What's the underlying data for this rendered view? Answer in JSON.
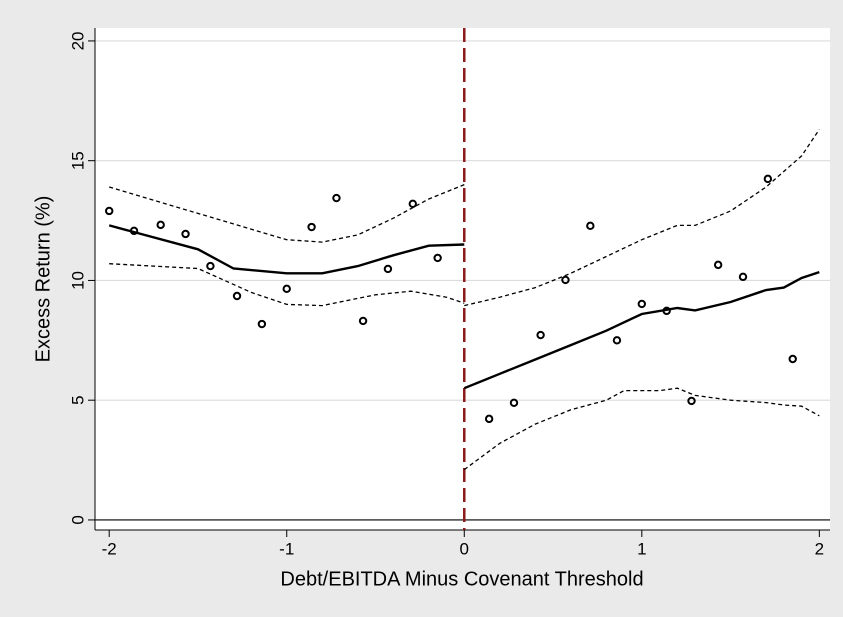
{
  "chart_data": {
    "type": "scatter",
    "x_label": "Debt/EBITDA Minus Covenant Threshold",
    "y_label": "Excess Return (%)",
    "xlim": [
      -2.08,
      2.06
    ],
    "ylim": [
      -0.42,
      20.54
    ],
    "xticks": [
      -2,
      -1,
      0,
      1,
      2
    ],
    "yticks": [
      0,
      5,
      10,
      15,
      20
    ],
    "grid": true,
    "vline": {
      "x": 0,
      "color": "#8b1a1a"
    },
    "series": [
      {
        "style": "points",
        "color": "#000000",
        "x": [
          -2,
          -1.86,
          -1.71,
          -1.57,
          -1.43,
          -1.28,
          -1.14,
          -1.0,
          -0.86,
          -0.72,
          -0.57,
          -0.43,
          -0.29,
          -0.15,
          0.14,
          0.28,
          0.43,
          0.57,
          0.71,
          0.86,
          1.0,
          1.14,
          1.28,
          1.43,
          1.57,
          1.71,
          1.85
        ],
        "values": [
          12.9,
          12.07,
          12.32,
          11.94,
          10.6,
          9.35,
          8.18,
          9.65,
          12.23,
          13.44,
          8.31,
          10.48,
          13.2,
          10.94,
          4.22,
          4.89,
          7.72,
          10.02,
          12.28,
          7.5,
          9.02,
          8.73,
          4.97,
          10.65,
          10.15,
          14.24,
          6.72
        ]
      },
      {
        "style": "solid",
        "color": "#000000",
        "x": [
          -2,
          -1.5,
          -1.3,
          -1,
          -0.8,
          -0.6,
          -0.4,
          -0.2,
          0
        ],
        "values": [
          12.3,
          11.3,
          10.5,
          10.3,
          10.3,
          10.6,
          11.05,
          11.45,
          11.5
        ]
      },
      {
        "style": "dashed",
        "color": "#000000",
        "x": [
          -2,
          -1.5,
          -1,
          -0.8,
          -0.6,
          -0.4,
          -0.2,
          0
        ],
        "values": [
          13.9,
          12.8,
          11.7,
          11.6,
          11.9,
          12.6,
          13.4,
          14.0
        ]
      },
      {
        "style": "dashed",
        "color": "#000000",
        "x": [
          -2,
          -1.5,
          -1.2,
          -1,
          -0.8,
          -0.5,
          -0.3,
          -0.1,
          0
        ],
        "values": [
          10.7,
          10.5,
          9.5,
          9.0,
          8.95,
          9.4,
          9.55,
          9.3,
          9.05
        ]
      },
      {
        "style": "solid",
        "color": "#000000",
        "x": [
          0,
          0.2,
          0.4,
          0.6,
          0.8,
          1.0,
          1.2,
          1.3,
          1.5,
          1.7,
          1.8,
          1.9,
          2.0
        ],
        "values": [
          5.5,
          6.1,
          6.7,
          7.3,
          7.9,
          8.6,
          8.85,
          8.75,
          9.1,
          9.6,
          9.7,
          10.1,
          10.35
        ]
      },
      {
        "style": "dashed",
        "color": "#000000",
        "x": [
          0,
          0.2,
          0.4,
          0.6,
          0.8,
          1.0,
          1.2,
          1.3,
          1.5,
          1.7,
          1.9,
          2.0
        ],
        "values": [
          8.95,
          9.3,
          9.7,
          10.3,
          11.0,
          11.7,
          12.3,
          12.3,
          12.9,
          13.9,
          15.2,
          16.3
        ]
      },
      {
        "style": "dashed",
        "color": "#000000",
        "x": [
          0,
          0.2,
          0.4,
          0.6,
          0.8,
          0.9,
          1.1,
          1.2,
          1.3,
          1.5,
          1.7,
          1.8,
          1.9,
          2.0
        ],
        "values": [
          2.1,
          3.2,
          4.0,
          4.6,
          5.0,
          5.4,
          5.4,
          5.5,
          5.2,
          5.0,
          4.9,
          4.8,
          4.75,
          4.35
        ]
      }
    ]
  }
}
